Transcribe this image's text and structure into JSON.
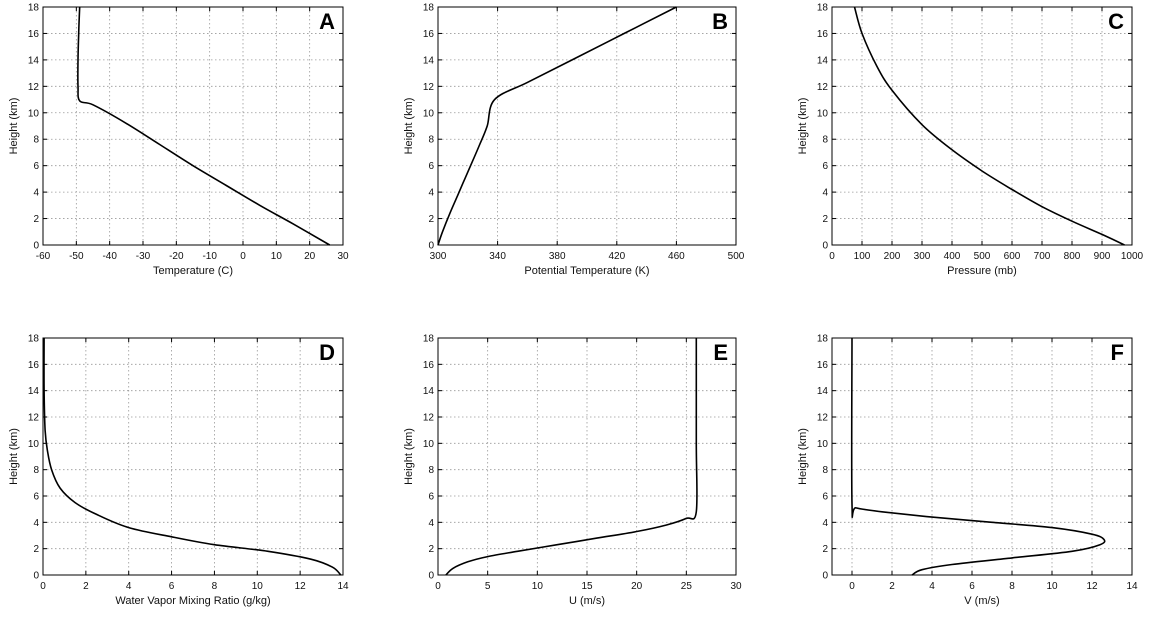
{
  "chart_data": [
    {
      "panel": "A",
      "type": "line",
      "xlabel": "Temperature (C)",
      "ylabel": "Height (km)",
      "xlim": [
        -60,
        30
      ],
      "ylim": [
        0,
        18
      ],
      "xticks": [
        -60,
        -50,
        -40,
        -30,
        -20,
        -10,
        0,
        10,
        20,
        30
      ],
      "yticks": [
        0,
        2,
        4,
        6,
        8,
        10,
        12,
        14,
        16,
        18
      ],
      "grid": true,
      "series": [
        {
          "x": [
            26,
            15,
            5,
            -5,
            -15,
            -25,
            -35,
            -45,
            -49,
            -49.5,
            -49.5,
            -49.3,
            -49
          ],
          "y": [
            0,
            1.6,
            3.0,
            4.5,
            6.0,
            7.6,
            9.2,
            10.6,
            10.9,
            12,
            14,
            16,
            18
          ]
        }
      ]
    },
    {
      "panel": "B",
      "type": "line",
      "xlabel": "Potential Temperature (K)",
      "ylabel": "Height (km)",
      "xlim": [
        300,
        500
      ],
      "ylim": [
        0,
        18
      ],
      "xticks": [
        300,
        340,
        380,
        420,
        460,
        500
      ],
      "yticks": [
        0,
        2,
        4,
        6,
        8,
        10,
        12,
        14,
        16,
        18
      ],
      "grid": true,
      "series": [
        {
          "x": [
            300,
            303,
            308,
            313,
            318,
            323,
            328,
            333,
            338,
            360,
            390,
            425,
            460
          ],
          "y": [
            0,
            1,
            2.4,
            3.7,
            5,
            6.3,
            7.6,
            9,
            11,
            12.3,
            14,
            16,
            18
          ]
        }
      ]
    },
    {
      "panel": "C",
      "type": "line",
      "xlabel": "Pressure (mb)",
      "ylabel": "Height (km)",
      "xlim": [
        0,
        1000
      ],
      "ylim": [
        0,
        18
      ],
      "xticks": [
        0,
        100,
        200,
        300,
        400,
        500,
        600,
        700,
        800,
        900,
        1000
      ],
      "yticks": [
        0,
        2,
        4,
        6,
        8,
        10,
        12,
        14,
        16,
        18
      ],
      "grid": true,
      "series": [
        {
          "x": [
            975,
            900,
            800,
            700,
            600,
            500,
            400,
            300,
            200,
            150,
            100,
            75
          ],
          "y": [
            0,
            0.8,
            1.8,
            2.9,
            4.2,
            5.6,
            7.2,
            9.1,
            11.7,
            13.5,
            16.0,
            18.0
          ]
        }
      ]
    },
    {
      "panel": "D",
      "type": "line",
      "xlabel": "Water Vapor Mixing Ratio (g/kg)",
      "ylabel": "Height (km)",
      "xlim": [
        0,
        14
      ],
      "ylim": [
        0,
        18
      ],
      "xticks": [
        0,
        2,
        4,
        6,
        8,
        10,
        12,
        14
      ],
      "yticks": [
        0,
        2,
        4,
        6,
        8,
        10,
        12,
        14,
        16,
        18
      ],
      "grid": true,
      "series": [
        {
          "x": [
            13.9,
            13.5,
            12.5,
            10.5,
            8,
            6,
            4,
            2.5,
            1.5,
            0.8,
            0.4,
            0.2,
            0.1,
            0.05,
            0.05
          ],
          "y": [
            0,
            0.6,
            1.2,
            1.8,
            2.3,
            2.9,
            3.6,
            4.6,
            5.5,
            6.6,
            8,
            9.5,
            11,
            14,
            18
          ]
        }
      ]
    },
    {
      "panel": "E",
      "type": "line",
      "xlabel": "U (m/s)",
      "ylabel": "Height (km)",
      "xlim": [
        0,
        30
      ],
      "ylim": [
        0,
        18
      ],
      "xticks": [
        0,
        5,
        10,
        15,
        20,
        25,
        30
      ],
      "yticks": [
        0,
        2,
        4,
        6,
        8,
        10,
        12,
        14,
        16,
        18
      ],
      "grid": true,
      "series": [
        {
          "x": [
            0.8,
            1.5,
            3,
            5,
            8,
            12,
            16,
            20,
            23,
            25,
            26,
            26,
            26
          ],
          "y": [
            0,
            0.5,
            1.0,
            1.4,
            1.8,
            2.3,
            2.8,
            3.3,
            3.8,
            4.3,
            4.8,
            10,
            18
          ]
        }
      ]
    },
    {
      "panel": "F",
      "type": "line",
      "xlabel": "V (m/s)",
      "ylabel": "Height (km)",
      "xlim": [
        -1,
        14
      ],
      "ylim": [
        0,
        18
      ],
      "xticks": [
        0,
        2,
        4,
        6,
        8,
        10,
        12,
        14
      ],
      "yticks": [
        0,
        2,
        4,
        6,
        8,
        10,
        12,
        14,
        16,
        18
      ],
      "grid": true,
      "series": [
        {
          "x": [
            3,
            3.5,
            5,
            8,
            11,
            12.4,
            12.6,
            12,
            10,
            7,
            4,
            1.5,
            0.2,
            0,
            0
          ],
          "y": [
            0,
            0.4,
            0.8,
            1.3,
            1.8,
            2.3,
            2.7,
            3.1,
            3.6,
            4.0,
            4.4,
            4.8,
            5.1,
            5.4,
            18
          ]
        }
      ]
    }
  ]
}
